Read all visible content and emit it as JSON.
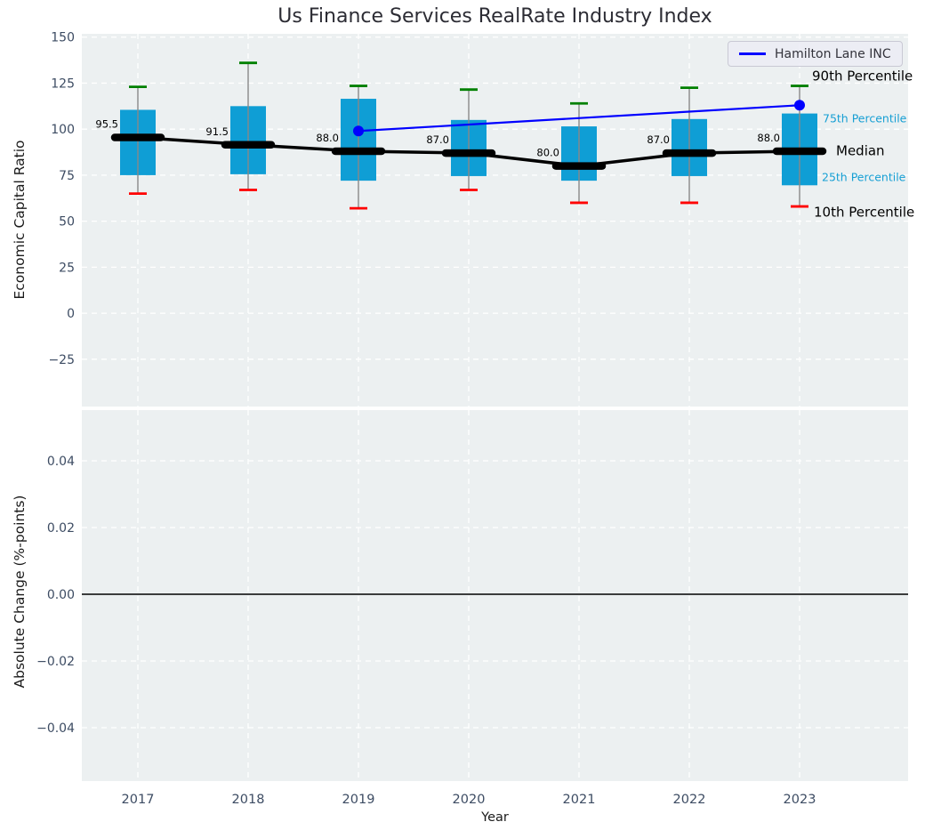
{
  "title": "Us Finance Services RealRate Industry Index",
  "legend": {
    "label": "Hamilton Lane INC",
    "line_color": "#0000ff",
    "position": "upper right"
  },
  "colors": {
    "box_fill": "#0f9ed5",
    "whisker_line": "#888888",
    "cap_high": "#008000",
    "cap_low": "#ff0000",
    "median_line": "#000000",
    "series_line": "#0000ff",
    "panel_bg": "#ecf0f1",
    "grid_line": "#ffffff",
    "tick_text": "#3d4c63",
    "cyan_label": "#169fd4",
    "zero_line": "#000000"
  },
  "chart_data": [
    {
      "type": "boxplot",
      "title": "Us Finance Services RealRate Industry Index",
      "ylabel": "Economic Capital Ratio",
      "categories": [
        "2017",
        "2018",
        "2019",
        "2020",
        "2021",
        "2022",
        "2023"
      ],
      "ytick_labels": [
        "150",
        "125",
        "100",
        "75",
        "50",
        "25",
        "0",
        "−25"
      ],
      "yticks": [
        150,
        125,
        100,
        75,
        50,
        25,
        0,
        -25
      ],
      "ylim": [
        -50.7,
        151.8
      ],
      "grid": true,
      "legend_position": "upper right",
      "boxes": [
        {
          "year": "2017",
          "whisker_low": 65,
          "q1": 75,
          "median": 95.5,
          "q3": 110.5,
          "whisker_high": 123,
          "label": "95.5"
        },
        {
          "year": "2018",
          "whisker_low": 67,
          "q1": 75.5,
          "median": 91.5,
          "q3": 112.5,
          "whisker_high": 136,
          "label": "91.5"
        },
        {
          "year": "2019",
          "whisker_low": 57,
          "q1": 72,
          "median": 88,
          "q3": 116.5,
          "whisker_high": 123.5,
          "label": "88.0"
        },
        {
          "year": "2020",
          "whisker_low": 67,
          "q1": 74.5,
          "median": 87,
          "q3": 105,
          "whisker_high": 121.5,
          "label": "87.0"
        },
        {
          "year": "2021",
          "whisker_low": 60,
          "q1": 72,
          "median": 80,
          "q3": 101.5,
          "whisker_high": 114,
          "label": "80.0"
        },
        {
          "year": "2022",
          "whisker_low": 60,
          "q1": 74.5,
          "median": 87,
          "q3": 105.5,
          "whisker_high": 122.5,
          "label": "87.0"
        },
        {
          "year": "2023",
          "whisker_low": 58,
          "q1": 69.5,
          "median": 88,
          "q3": 108.5,
          "whisker_high": 123.5,
          "label": "88.0"
        }
      ],
      "series": [
        {
          "name": "Hamilton Lane INC",
          "x": [
            "2019",
            "2023"
          ],
          "values": [
            99,
            113
          ],
          "color": "#0000ff"
        }
      ],
      "annotations": [
        {
          "text": "90th Percentile",
          "value": 129,
          "color": "#000000",
          "size": 15,
          "x": 913
        },
        {
          "text": "75th Percentile",
          "value": 105.8,
          "color": "#169fd4",
          "size": 12.5,
          "x": 925
        },
        {
          "text": "Median",
          "value": 88.4,
          "color": "#000000",
          "size": 15,
          "x": 940
        },
        {
          "text": "25th Percentile",
          "value": 74,
          "color": "#169fd4",
          "size": 12.5,
          "x": 924
        },
        {
          "text": "10th Percentile",
          "value": 55,
          "color": "#000000",
          "size": 15,
          "x": 915
        }
      ]
    },
    {
      "type": "line",
      "ylabel": "Absolute Change (%-points)",
      "xlabel": "Year",
      "categories": [
        "2017",
        "2018",
        "2019",
        "2020",
        "2021",
        "2022",
        "2023"
      ],
      "ytick_labels": [
        "0.04",
        "0.02",
        "0.00",
        "−0.02",
        "−0.04"
      ],
      "yticks": [
        0.04,
        0.02,
        0,
        -0.02,
        -0.04
      ],
      "ylim": [
        -0.056,
        0.0552
      ],
      "grid": true,
      "zero_line": true,
      "series": []
    }
  ]
}
